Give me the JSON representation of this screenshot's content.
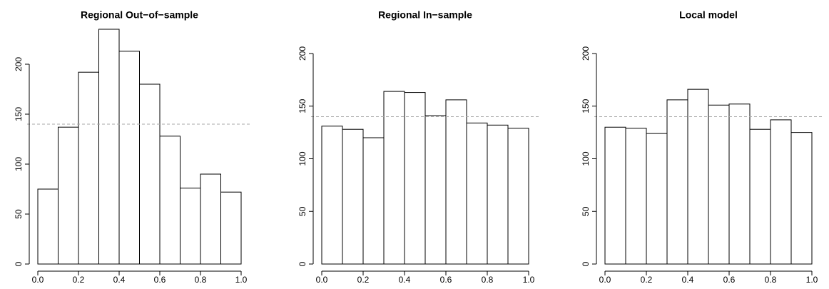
{
  "chart_data": [
    {
      "type": "histogram",
      "title": "Regional Out−of−sample",
      "bins": [
        0,
        0.1,
        0.2,
        0.3,
        0.4,
        0.5,
        0.6,
        0.7,
        0.8,
        0.9,
        1
      ],
      "values": [
        75,
        137,
        192,
        235,
        213,
        180,
        128,
        76,
        90,
        72
      ],
      "xlim": [
        0,
        1
      ],
      "xticks": [
        {
          "value": 0,
          "label": "0.0"
        },
        0.2,
        0.4,
        0.6,
        0.8,
        {
          "value": 1,
          "label": "1.0"
        }
      ],
      "ylim": [
        0,
        235
      ],
      "yticks": [
        0,
        50,
        100,
        150,
        200
      ],
      "hline": 140
    },
    {
      "type": "histogram",
      "title": "Regional In−sample",
      "bins": [
        0,
        0.1,
        0.2,
        0.3,
        0.4,
        0.5,
        0.6,
        0.7,
        0.8,
        0.9,
        1
      ],
      "values": [
        131,
        128,
        120,
        164,
        163,
        141,
        156,
        134,
        132,
        129
      ],
      "xlim": [
        0,
        1
      ],
      "xticks": [
        {
          "value": 0,
          "label": "0.0"
        },
        0.2,
        0.4,
        0.6,
        0.8,
        {
          "value": 1,
          "label": "1.0"
        }
      ],
      "ylim": [
        0,
        200
      ],
      "yticks": [
        0,
        50,
        100,
        150,
        200
      ],
      "hline": 140
    },
    {
      "type": "histogram",
      "title": "Local model",
      "bins": [
        0,
        0.1,
        0.2,
        0.3,
        0.4,
        0.5,
        0.6,
        0.7,
        0.8,
        0.9,
        1
      ],
      "values": [
        130,
        129,
        124,
        156,
        166,
        151,
        152,
        128,
        137,
        125
      ],
      "xlim": [
        0,
        1
      ],
      "xticks": [
        {
          "value": 0,
          "label": "0.0"
        },
        0.2,
        0.4,
        0.6,
        0.8,
        {
          "value": 1,
          "label": "1.0"
        }
      ],
      "ylim": [
        0,
        200
      ],
      "yticks": [
        0,
        50,
        100,
        150,
        200
      ],
      "hline": 140
    }
  ]
}
